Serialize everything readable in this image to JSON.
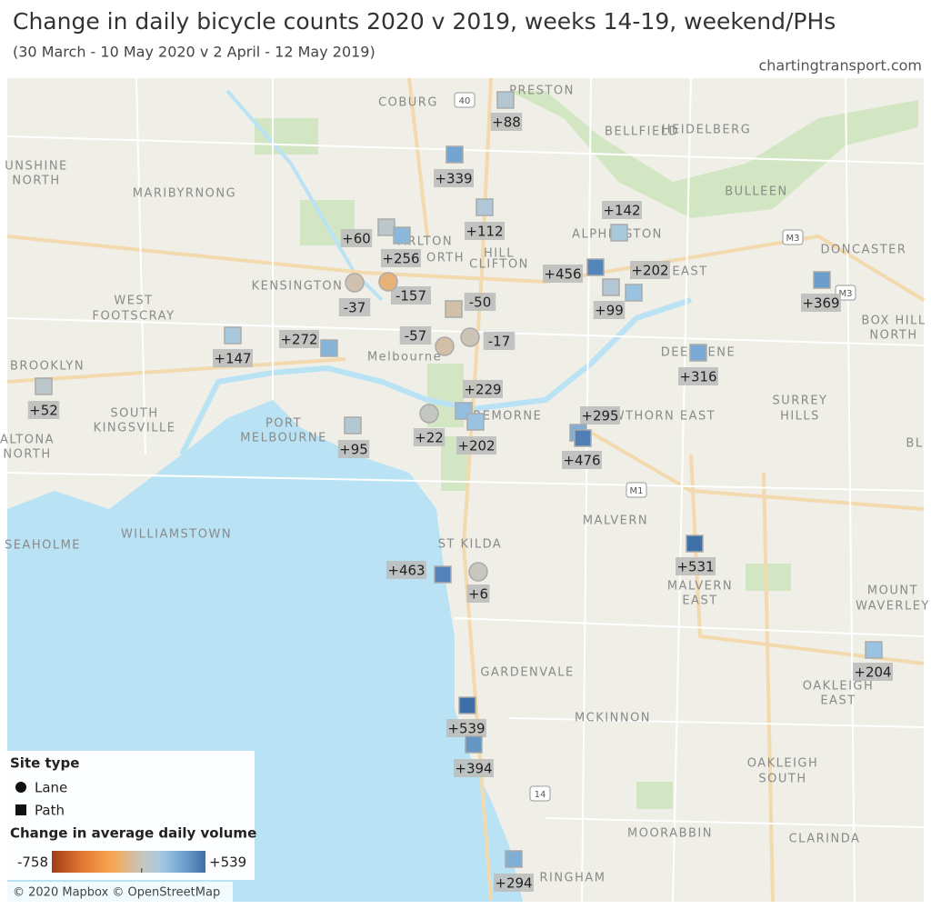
{
  "header": {
    "title": "Change in daily bicycle counts 2020 v 2019, weeks 14-19, weekend/PHs",
    "subtitle": "(30 March - 10 May 2020 v 2 April - 12 May 2019)",
    "source": "chartingtransport.com"
  },
  "places": [
    "COBURG",
    "PRESTON",
    "BELLFIELD",
    "HEIDELBERG",
    "UNSHINE",
    "NORTH",
    "MARIBYRNONG",
    "BULLEEN",
    "ARLTON",
    "ORTH",
    "ALPHINGTON",
    "DONCASTER",
    "CLIFTON",
    "HILL",
    "KENSINGTON",
    "EAST",
    "WEST",
    "FOOTSCRAY",
    "BOX HILL",
    "NORTH",
    "Melbourne",
    "DEEPDENE",
    "BROOKLYN",
    "SURREY",
    "HILLS",
    "SOUTH",
    "KINGSVILLE",
    "PORT",
    "MELBOURNE",
    "CREMORNE",
    "HAWTHORN EAST",
    "ALTONA",
    "NORTH",
    "BL",
    "MALVERN",
    "WILLIAMSTOWN",
    "SEAHOLME",
    "ST KILDA",
    "MALVERN",
    "EAST",
    "MOUNT",
    "WAVERLEY",
    "GARDENVALE",
    "OAKLEIGH",
    "EAST",
    "MCKINNON",
    "OAKLEIGH",
    "SOUTH",
    "MOORABBIN",
    "CLARINDA",
    "RINGHAM"
  ],
  "road_shields": [
    "40",
    "M3",
    "M3",
    "M1",
    "14"
  ],
  "sites": [
    {
      "value": 88,
      "label": "+88",
      "type": "Path"
    },
    {
      "value": 339,
      "label": "+339",
      "type": "Path"
    },
    {
      "value": 112,
      "label": "+112",
      "type": "Path"
    },
    {
      "value": 60,
      "label": "+60",
      "type": "Path"
    },
    {
      "value": 256,
      "label": "+256",
      "type": "Path"
    },
    {
      "value": 142,
      "label": "+142",
      "type": "Path"
    },
    {
      "value": 456,
      "label": "+456",
      "type": "Path"
    },
    {
      "value": 202,
      "label": "+202",
      "type": "Path"
    },
    {
      "value": 99,
      "label": "+99",
      "type": "Path"
    },
    {
      "value": 369,
      "label": "+369",
      "type": "Path"
    },
    {
      "value": -37,
      "label": "-37",
      "type": "Lane"
    },
    {
      "value": -157,
      "label": "-157",
      "type": "Lane"
    },
    {
      "value": -50,
      "label": "-50",
      "type": "Path"
    },
    {
      "value": -57,
      "label": "-57",
      "type": "Lane"
    },
    {
      "value": -17,
      "label": "-17",
      "type": "Lane"
    },
    {
      "value": 272,
      "label": "+272",
      "type": "Path"
    },
    {
      "value": 147,
      "label": "+147",
      "type": "Path"
    },
    {
      "value": 316,
      "label": "+316",
      "type": "Path"
    },
    {
      "value": 52,
      "label": "+52",
      "type": "Path"
    },
    {
      "value": 229,
      "label": "+229",
      "type": "Path"
    },
    {
      "value": 202,
      "label": "+202",
      "type": "Path"
    },
    {
      "value": 22,
      "label": "+22",
      "type": "Lane"
    },
    {
      "value": 95,
      "label": "+95",
      "type": "Path"
    },
    {
      "value": 295,
      "label": "+295",
      "type": "Path"
    },
    {
      "value": 476,
      "label": "+476",
      "type": "Path"
    },
    {
      "value": 531,
      "label": "+531",
      "type": "Path"
    },
    {
      "value": 463,
      "label": "+463",
      "type": "Path"
    },
    {
      "value": 6,
      "label": "+6",
      "type": "Lane"
    },
    {
      "value": 204,
      "label": "+204",
      "type": "Path"
    },
    {
      "value": 539,
      "label": "+539",
      "type": "Path"
    },
    {
      "value": 394,
      "label": "+394",
      "type": "Path"
    },
    {
      "value": 294,
      "label": "+294",
      "type": "Path"
    }
  ],
  "legend": {
    "shape_title": "Site type",
    "shapes": [
      "Lane",
      "Path"
    ],
    "color_title": "Change in average daily volume",
    "min": {
      "value": -758,
      "label": "-758"
    },
    "max": {
      "value": 539,
      "label": "+539"
    }
  },
  "attribution": "© 2020 Mapbox © OpenStreetMap"
}
